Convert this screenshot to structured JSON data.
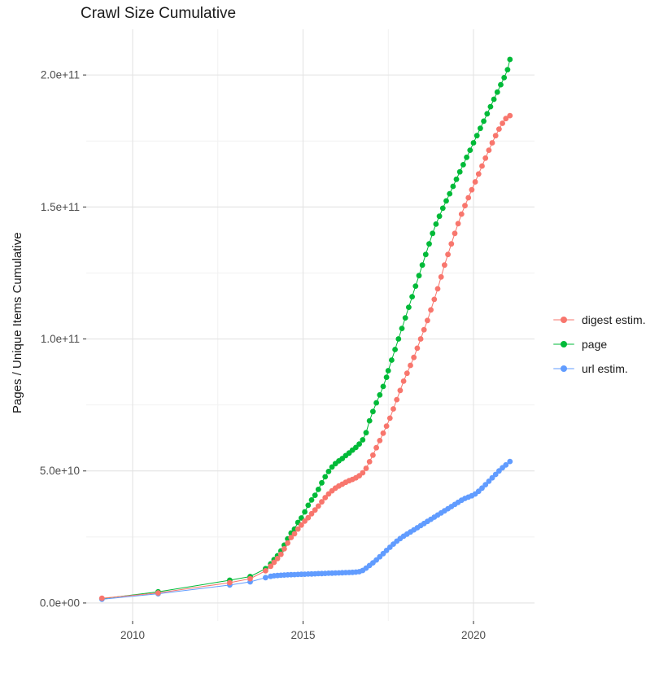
{
  "chart_data": {
    "type": "line",
    "marker": "circle",
    "title": "Crawl Size Cumulative",
    "xlabel": "",
    "ylabel": "Pages / Unique Items Cumulative",
    "value_unit": "billions (1e9) of pages / unique items",
    "x_unit": "year",
    "grid": "on",
    "legend_position": "right",
    "x_domain": [
      2008.64,
      2021.79
    ],
    "y_domain": [
      -6.8,
      217.3
    ],
    "x_ticks": [
      {
        "value": 2010,
        "label": "2010"
      },
      {
        "value": 2015,
        "label": "2015"
      },
      {
        "value": 2020,
        "label": "2020"
      }
    ],
    "x_minor": [
      2012.5,
      2017.5
    ],
    "y_ticks": [
      {
        "value": 0,
        "label": "0.0e+00"
      },
      {
        "value": 50,
        "label": "5.0e+10"
      },
      {
        "value": 100,
        "label": "1.0e+11"
      },
      {
        "value": 150,
        "label": "1.5e+11"
      },
      {
        "value": 200,
        "label": "2.0e+11"
      }
    ],
    "y_minor": [
      25,
      75,
      125,
      175
    ],
    "colors": {
      "grid_major": "#e3e3e3",
      "grid_minor": "#f1f1f1",
      "tick": "#333333",
      "axis_text": "#4d4d4d",
      "title_text": "#1a1a1a"
    },
    "draw_order": [
      1,
      2,
      0
    ],
    "series": [
      {
        "id": "digest-estim",
        "name": "digest estim.",
        "color": "#F8766D",
        "points": [
          [
            2009.1,
            1.8
          ],
          [
            2010.75,
            3.8
          ],
          [
            2012.85,
            7.7
          ],
          [
            2013.45,
            9.2
          ],
          [
            2013.9,
            12.2
          ],
          [
            2014.05,
            13.9
          ],
          [
            2014.15,
            15.4
          ],
          [
            2014.25,
            16.8
          ],
          [
            2014.35,
            18.4
          ],
          [
            2014.45,
            20.5
          ],
          [
            2014.55,
            22.7
          ],
          [
            2014.65,
            24.8
          ],
          [
            2014.75,
            26.2
          ],
          [
            2014.85,
            28.0
          ],
          [
            2014.95,
            29.5
          ],
          [
            2015.05,
            31.0
          ],
          [
            2015.15,
            32.3
          ],
          [
            2015.25,
            33.8
          ],
          [
            2015.35,
            35.2
          ],
          [
            2015.45,
            36.7
          ],
          [
            2015.55,
            38.3
          ],
          [
            2015.65,
            39.9
          ],
          [
            2015.75,
            41.3
          ],
          [
            2015.85,
            42.5
          ],
          [
            2015.95,
            43.5
          ],
          [
            2016.05,
            44.3
          ],
          [
            2016.15,
            45.0
          ],
          [
            2016.25,
            45.7
          ],
          [
            2016.35,
            46.3
          ],
          [
            2016.45,
            46.8
          ],
          [
            2016.55,
            47.4
          ],
          [
            2016.65,
            48.2
          ],
          [
            2016.75,
            49.3
          ],
          [
            2016.85,
            51.0
          ],
          [
            2016.95,
            53.5
          ],
          [
            2017.05,
            56.0
          ],
          [
            2017.15,
            58.8
          ],
          [
            2017.25,
            61.5
          ],
          [
            2017.35,
            64.3
          ],
          [
            2017.45,
            67.0
          ],
          [
            2017.55,
            70.0
          ],
          [
            2017.65,
            73.5
          ],
          [
            2017.75,
            77.0
          ],
          [
            2017.85,
            80.5
          ],
          [
            2017.95,
            84.0
          ],
          [
            2018.05,
            87.0
          ],
          [
            2018.15,
            90.0
          ],
          [
            2018.25,
            93.0
          ],
          [
            2018.35,
            96.5
          ],
          [
            2018.45,
            100.0
          ],
          [
            2018.55,
            103.5
          ],
          [
            2018.65,
            107.0
          ],
          [
            2018.75,
            111.0
          ],
          [
            2018.85,
            115.0
          ],
          [
            2018.95,
            119.0
          ],
          [
            2019.05,
            123.5
          ],
          [
            2019.15,
            128.0
          ],
          [
            2019.25,
            132.0
          ],
          [
            2019.35,
            136.0
          ],
          [
            2019.45,
            140.0
          ],
          [
            2019.55,
            143.7
          ],
          [
            2019.65,
            147.3
          ],
          [
            2019.75,
            150.5
          ],
          [
            2019.85,
            153.5
          ],
          [
            2019.95,
            156.5
          ],
          [
            2020.05,
            159.5
          ],
          [
            2020.15,
            162.5
          ],
          [
            2020.25,
            165.5
          ],
          [
            2020.35,
            168.5
          ],
          [
            2020.45,
            171.5
          ],
          [
            2020.55,
            174.3
          ],
          [
            2020.65,
            177.0
          ],
          [
            2020.75,
            179.5
          ],
          [
            2020.85,
            181.7
          ],
          [
            2020.95,
            183.5
          ],
          [
            2021.07,
            184.6
          ]
        ]
      },
      {
        "id": "page",
        "name": "page",
        "color": "#00BA38",
        "points": [
          [
            2009.1,
            1.6
          ],
          [
            2010.75,
            4.2
          ],
          [
            2012.85,
            8.6
          ],
          [
            2013.45,
            10.0
          ],
          [
            2013.9,
            13.0
          ],
          [
            2014.05,
            14.8
          ],
          [
            2014.15,
            16.4
          ],
          [
            2014.25,
            17.9
          ],
          [
            2014.35,
            19.7
          ],
          [
            2014.45,
            21.9
          ],
          [
            2014.55,
            24.3
          ],
          [
            2014.65,
            26.5
          ],
          [
            2014.75,
            28.0
          ],
          [
            2014.85,
            30.5
          ],
          [
            2014.95,
            32.2
          ],
          [
            2015.05,
            34.5
          ],
          [
            2015.15,
            37.0
          ],
          [
            2015.25,
            39.0
          ],
          [
            2015.35,
            40.8
          ],
          [
            2015.45,
            43.0
          ],
          [
            2015.55,
            45.5
          ],
          [
            2015.65,
            47.8
          ],
          [
            2015.75,
            49.8
          ],
          [
            2015.85,
            51.5
          ],
          [
            2015.95,
            52.8
          ],
          [
            2016.05,
            53.8
          ],
          [
            2016.15,
            54.7
          ],
          [
            2016.25,
            55.8
          ],
          [
            2016.35,
            56.8
          ],
          [
            2016.45,
            57.9
          ],
          [
            2016.55,
            58.9
          ],
          [
            2016.65,
            60.2
          ],
          [
            2016.75,
            61.8
          ],
          [
            2016.85,
            64.5
          ],
          [
            2016.95,
            69.0
          ],
          [
            2017.05,
            72.5
          ],
          [
            2017.15,
            75.8
          ],
          [
            2017.25,
            78.8
          ],
          [
            2017.35,
            82.0
          ],
          [
            2017.45,
            85.5
          ],
          [
            2017.5,
            88.0
          ],
          [
            2017.6,
            92.0
          ],
          [
            2017.7,
            96.0
          ],
          [
            2017.8,
            100.0
          ],
          [
            2017.9,
            104.0
          ],
          [
            2018.0,
            108.0
          ],
          [
            2018.1,
            112.0
          ],
          [
            2018.2,
            116.0
          ],
          [
            2018.3,
            120.0
          ],
          [
            2018.4,
            124.0
          ],
          [
            2018.5,
            128.0
          ],
          [
            2018.6,
            132.0
          ],
          [
            2018.7,
            136.0
          ],
          [
            2018.8,
            140.0
          ],
          [
            2018.9,
            143.5
          ],
          [
            2019.0,
            146.5
          ],
          [
            2019.1,
            149.5
          ],
          [
            2019.2,
            152.3
          ],
          [
            2019.3,
            155.0
          ],
          [
            2019.4,
            157.8
          ],
          [
            2019.5,
            160.5
          ],
          [
            2019.6,
            163.3
          ],
          [
            2019.7,
            166.0
          ],
          [
            2019.8,
            168.8
          ],
          [
            2019.9,
            171.5
          ],
          [
            2020.0,
            174.3
          ],
          [
            2020.1,
            177.0
          ],
          [
            2020.2,
            179.8
          ],
          [
            2020.3,
            182.5
          ],
          [
            2020.4,
            185.3
          ],
          [
            2020.5,
            188.0
          ],
          [
            2020.6,
            190.8
          ],
          [
            2020.7,
            193.5
          ],
          [
            2020.8,
            196.3
          ],
          [
            2020.9,
            199.0
          ],
          [
            2021.0,
            202.0
          ],
          [
            2021.07,
            205.9
          ]
        ]
      },
      {
        "id": "url-estim",
        "name": "url estim.",
        "color": "#619CFF",
        "points": [
          [
            2009.1,
            1.4
          ],
          [
            2010.75,
            3.5
          ],
          [
            2012.85,
            6.8
          ],
          [
            2013.45,
            8.0
          ],
          [
            2013.9,
            9.6
          ],
          [
            2014.05,
            10.1
          ],
          [
            2014.15,
            10.3
          ],
          [
            2014.25,
            10.4
          ],
          [
            2014.35,
            10.5
          ],
          [
            2014.45,
            10.6
          ],
          [
            2014.55,
            10.65
          ],
          [
            2014.65,
            10.7
          ],
          [
            2014.75,
            10.75
          ],
          [
            2014.85,
            10.8
          ],
          [
            2014.95,
            10.85
          ],
          [
            2015.05,
            10.9
          ],
          [
            2015.15,
            10.95
          ],
          [
            2015.25,
            11.0
          ],
          [
            2015.35,
            11.05
          ],
          [
            2015.45,
            11.1
          ],
          [
            2015.55,
            11.15
          ],
          [
            2015.65,
            11.2
          ],
          [
            2015.75,
            11.25
          ],
          [
            2015.85,
            11.3
          ],
          [
            2015.95,
            11.35
          ],
          [
            2016.05,
            11.4
          ],
          [
            2016.15,
            11.45
          ],
          [
            2016.25,
            11.5
          ],
          [
            2016.35,
            11.55
          ],
          [
            2016.45,
            11.6
          ],
          [
            2016.55,
            11.7
          ],
          [
            2016.65,
            11.85
          ],
          [
            2016.75,
            12.3
          ],
          [
            2016.85,
            13.2
          ],
          [
            2016.95,
            14.2
          ],
          [
            2017.05,
            15.2
          ],
          [
            2017.15,
            16.3
          ],
          [
            2017.25,
            17.5
          ],
          [
            2017.35,
            18.7
          ],
          [
            2017.45,
            19.9
          ],
          [
            2017.55,
            21.1
          ],
          [
            2017.65,
            22.3
          ],
          [
            2017.75,
            23.4
          ],
          [
            2017.85,
            24.4
          ],
          [
            2017.95,
            25.3
          ],
          [
            2018.05,
            26.1
          ],
          [
            2018.15,
            26.9
          ],
          [
            2018.25,
            27.7
          ],
          [
            2018.35,
            28.5
          ],
          [
            2018.45,
            29.3
          ],
          [
            2018.55,
            30.1
          ],
          [
            2018.65,
            30.9
          ],
          [
            2018.75,
            31.7
          ],
          [
            2018.85,
            32.5
          ],
          [
            2018.95,
            33.3
          ],
          [
            2019.05,
            34.1
          ],
          [
            2019.15,
            34.9
          ],
          [
            2019.25,
            35.7
          ],
          [
            2019.35,
            36.5
          ],
          [
            2019.45,
            37.3
          ],
          [
            2019.55,
            38.1
          ],
          [
            2019.65,
            38.9
          ],
          [
            2019.75,
            39.6
          ],
          [
            2019.85,
            40.1
          ],
          [
            2019.95,
            40.6
          ],
          [
            2020.05,
            41.3
          ],
          [
            2020.15,
            42.3
          ],
          [
            2020.25,
            43.5
          ],
          [
            2020.35,
            44.8
          ],
          [
            2020.45,
            46.1
          ],
          [
            2020.55,
            47.4
          ],
          [
            2020.65,
            48.7
          ],
          [
            2020.75,
            50.0
          ],
          [
            2020.85,
            51.2
          ],
          [
            2020.95,
            52.3
          ],
          [
            2021.07,
            53.6
          ]
        ]
      }
    ]
  }
}
